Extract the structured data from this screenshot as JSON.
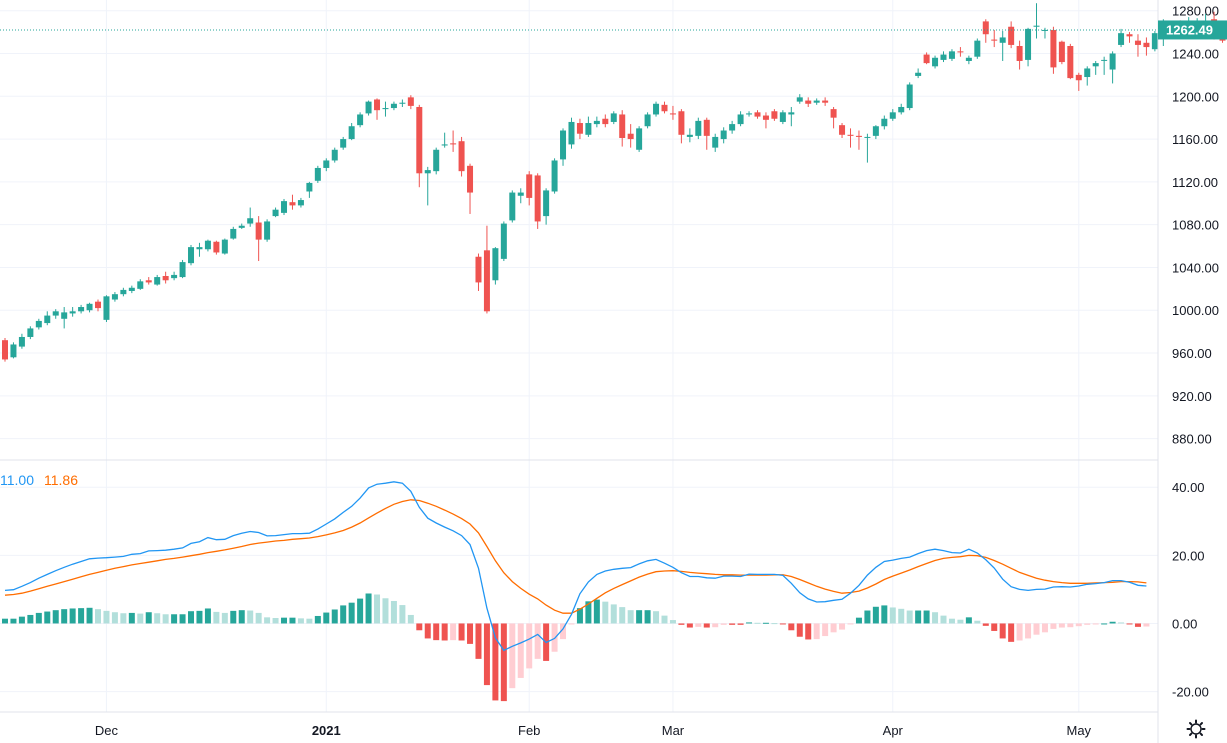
{
  "colors": {
    "up": "#26a69a",
    "down": "#ef5350",
    "hist_up_strong": "#26a69a",
    "hist_up_weak": "#b2dfdb",
    "hist_down_strong": "#ef5350",
    "hist_down_weak": "#ffcdd2",
    "macd": "#2196f3",
    "signal": "#ff6d00",
    "grid": "#f0f3fa",
    "axis_text": "#131722"
  },
  "last_price_label": "1262.49",
  "settings_icon": "gear-icon",
  "macd_legend": {
    "macd_value": "11.00",
    "signal_value": "11.86"
  },
  "chart_data": [
    {
      "type": "candlestick",
      "grid": true,
      "ylim": [
        860,
        1290
      ],
      "y_ticks": [
        "1280.00",
        "1240.00",
        "1200.00",
        "1160.00",
        "1120.00",
        "1080.00",
        "1040.00",
        "1000.00",
        "960.00",
        "920.00",
        "880.00"
      ],
      "y_tick_values": [
        1280,
        1240,
        1200,
        1160,
        1120,
        1080,
        1040,
        1000,
        960,
        920,
        880
      ],
      "x_labels": [
        {
          "label": "Dec",
          "index": 12,
          "bold": false
        },
        {
          "label": "2021",
          "index": 38,
          "bold": true
        },
        {
          "label": "Feb",
          "index": 62,
          "bold": false
        },
        {
          "label": "Mar",
          "index": 79,
          "bold": false
        },
        {
          "label": "Apr",
          "index": 105,
          "bold": false
        },
        {
          "label": "May",
          "index": 127,
          "bold": false
        }
      ],
      "candles": [
        [
          972,
          954,
          974,
          952
        ],
        [
          956,
          968,
          970,
          955
        ],
        [
          966,
          975,
          978,
          964
        ],
        [
          975,
          983,
          985,
          973
        ],
        [
          984,
          990,
          992,
          982
        ],
        [
          988,
          995,
          999,
          986
        ],
        [
          995,
          999,
          1001,
          992
        ],
        [
          992,
          998,
          1003,
          983
        ],
        [
          997,
          999,
          1003,
          994
        ],
        [
          999,
          1003,
          1005,
          997
        ],
        [
          1000,
          1006,
          1007,
          998
        ],
        [
          1008,
          1002,
          1010,
          999
        ],
        [
          991,
          1013,
          1014,
          989
        ],
        [
          1010,
          1015,
          1017,
          1008
        ],
        [
          1015,
          1019,
          1021,
          1013
        ],
        [
          1018,
          1021,
          1023,
          1016
        ],
        [
          1020,
          1027,
          1029,
          1019
        ],
        [
          1028,
          1026,
          1031,
          1024
        ],
        [
          1024,
          1031,
          1033,
          1023
        ],
        [
          1032,
          1028,
          1036,
          1025
        ],
        [
          1030,
          1033,
          1036,
          1028
        ],
        [
          1031,
          1045,
          1047,
          1030
        ],
        [
          1044,
          1059,
          1061,
          1042
        ],
        [
          1057,
          1059,
          1063,
          1050
        ],
        [
          1057,
          1065,
          1066,
          1055
        ],
        [
          1064,
          1054,
          1065,
          1052
        ],
        [
          1053,
          1066,
          1067,
          1052
        ],
        [
          1067,
          1076,
          1078,
          1066
        ],
        [
          1077,
          1079,
          1081,
          1076
        ],
        [
          1081,
          1086,
          1096,
          1078
        ],
        [
          1082,
          1066,
          1088,
          1046
        ],
        [
          1066,
          1083,
          1085,
          1064
        ],
        [
          1088,
          1094,
          1096,
          1087
        ],
        [
          1091,
          1102,
          1104,
          1089
        ],
        [
          1101,
          1098,
          1108,
          1094
        ],
        [
          1098,
          1103,
          1105,
          1096
        ],
        [
          1111,
          1119,
          1120,
          1105
        ],
        [
          1121,
          1133,
          1135,
          1119
        ],
        [
          1133,
          1140,
          1142,
          1130
        ],
        [
          1140,
          1150,
          1152,
          1138
        ],
        [
          1152,
          1160,
          1162,
          1150
        ],
        [
          1160,
          1172,
          1175,
          1159
        ],
        [
          1173,
          1183,
          1185,
          1171
        ],
        [
          1184,
          1195,
          1196,
          1182
        ],
        [
          1197,
          1187,
          1198,
          1178
        ],
        [
          1188,
          1189,
          1195,
          1181
        ],
        [
          1189,
          1193,
          1195,
          1187
        ],
        [
          1193,
          1194,
          1197,
          1190
        ],
        [
          1199,
          1191,
          1201,
          1188
        ],
        [
          1190,
          1128,
          1192,
          1115
        ],
        [
          1128,
          1131,
          1134,
          1098
        ],
        [
          1130,
          1150,
          1152,
          1127
        ],
        [
          1154,
          1155,
          1166,
          1152
        ],
        [
          1156,
          1155,
          1168,
          1148
        ],
        [
          1158,
          1130,
          1162,
          1125
        ],
        [
          1135,
          1110,
          1137,
          1090
        ],
        [
          1050,
          1026,
          1053,
          1018
        ],
        [
          1056,
          999,
          1079,
          997
        ],
        [
          1028,
          1058,
          1059,
          1024
        ],
        [
          1048,
          1081,
          1083,
          1046
        ],
        [
          1084,
          1110,
          1112,
          1082
        ],
        [
          1107,
          1110,
          1114,
          1100
        ],
        [
          1127,
          1105,
          1130,
          1098
        ],
        [
          1126,
          1083,
          1128,
          1076
        ],
        [
          1088,
          1112,
          1114,
          1080
        ],
        [
          1111,
          1140,
          1142,
          1109
        ],
        [
          1141,
          1168,
          1170,
          1135
        ],
        [
          1155,
          1176,
          1180,
          1151
        ],
        [
          1175,
          1165,
          1179,
          1160
        ],
        [
          1164,
          1175,
          1181,
          1162
        ],
        [
          1174,
          1177,
          1181,
          1171
        ],
        [
          1179,
          1174,
          1183,
          1171
        ],
        [
          1176,
          1184,
          1186,
          1174
        ],
        [
          1183,
          1161,
          1187,
          1153
        ],
        [
          1165,
          1160,
          1174,
          1152
        ],
        [
          1150,
          1170,
          1172,
          1148
        ],
        [
          1172,
          1183,
          1185,
          1170
        ],
        [
          1183,
          1193,
          1195,
          1181
        ],
        [
          1192,
          1186,
          1195,
          1184
        ],
        [
          1184,
          1183,
          1191,
          1178
        ],
        [
          1186,
          1164,
          1188,
          1156
        ],
        [
          1162,
          1164,
          1170,
          1157
        ],
        [
          1163,
          1177,
          1180,
          1160
        ],
        [
          1178,
          1163,
          1180,
          1150
        ],
        [
          1152,
          1162,
          1165,
          1148
        ],
        [
          1160,
          1168,
          1171,
          1156
        ],
        [
          1168,
          1174,
          1177,
          1165
        ],
        [
          1174,
          1183,
          1186,
          1172
        ],
        [
          1183,
          1184,
          1186,
          1181
        ],
        [
          1185,
          1181,
          1187,
          1179
        ],
        [
          1182,
          1178,
          1185,
          1170
        ],
        [
          1186,
          1179,
          1188,
          1177
        ],
        [
          1176,
          1185,
          1187,
          1174
        ],
        [
          1183,
          1185,
          1190,
          1172
        ],
        [
          1195,
          1199,
          1202,
          1193
        ],
        [
          1196,
          1193,
          1199,
          1190
        ],
        [
          1194,
          1196,
          1198,
          1192
        ],
        [
          1196,
          1194,
          1199,
          1191
        ],
        [
          1188,
          1180,
          1190,
          1170
        ],
        [
          1173,
          1164,
          1175,
          1161
        ],
        [
          1164,
          1163,
          1170,
          1152
        ],
        [
          1163,
          1162,
          1168,
          1150
        ],
        [
          1162,
          1162,
          1165,
          1138
        ],
        [
          1163,
          1172,
          1173,
          1160
        ],
        [
          1172,
          1179,
          1182,
          1169
        ],
        [
          1179,
          1185,
          1188,
          1177
        ],
        [
          1185,
          1190,
          1193,
          1183
        ],
        [
          1189,
          1211,
          1213,
          1187
        ],
        [
          1219,
          1222,
          1226,
          1217
        ],
        [
          1239,
          1231,
          1241,
          1230
        ],
        [
          1228,
          1236,
          1238,
          1226
        ],
        [
          1234,
          1239,
          1242,
          1232
        ],
        [
          1235,
          1242,
          1244,
          1233
        ],
        [
          1242,
          1241,
          1246,
          1237
        ],
        [
          1233,
          1236,
          1238,
          1230
        ],
        [
          1237,
          1252,
          1254,
          1235
        ],
        [
          1270,
          1258,
          1272,
          1250
        ],
        [
          1253,
          1252,
          1262,
          1246
        ],
        [
          1250,
          1255,
          1261,
          1233
        ],
        [
          1265,
          1248,
          1270,
          1245
        ],
        [
          1247,
          1233,
          1252,
          1225
        ],
        [
          1234,
          1263,
          1264,
          1228
        ],
        [
          1265,
          1266,
          1287,
          1254
        ],
        [
          1262,
          1262,
          1264,
          1254
        ],
        [
          1262,
          1227,
          1265,
          1221
        ],
        [
          1251,
          1232,
          1252,
          1230
        ],
        [
          1247,
          1217,
          1249,
          1216
        ],
        [
          1220,
          1215,
          1222,
          1205
        ],
        [
          1218,
          1226,
          1228,
          1210
        ],
        [
          1228,
          1231,
          1233,
          1220
        ],
        [
          1234,
          1234,
          1237,
          1220
        ],
        [
          1225,
          1240,
          1242,
          1212
        ],
        [
          1248,
          1259,
          1263,
          1246
        ],
        [
          1258,
          1256,
          1260,
          1250
        ],
        [
          1252,
          1248,
          1258,
          1237
        ],
        [
          1250,
          1246,
          1255,
          1238
        ],
        [
          1244,
          1259,
          1261,
          1242
        ],
        [
          1262,
          1264,
          1272,
          1247
        ],
        [
          1256,
          1263,
          1269,
          1254
        ],
        [
          1270,
          1261,
          1271,
          1256
        ],
        [
          1262,
          1262,
          1274,
          1257
        ],
        [
          1261,
          1262,
          1273,
          1257
        ],
        [
          1265,
          1267,
          1277,
          1261
        ],
        [
          1272,
          1259,
          1279,
          1253
        ],
        [
          1262,
          1252,
          1264,
          1250
        ],
        [
          1253,
          1262,
          1264,
          1252
        ]
      ]
    },
    {
      "type": "macd",
      "grid": true,
      "ylim": [
        -26,
        48
      ],
      "y_ticks": [
        "40.00",
        "20.00",
        "0.00",
        "-20.00"
      ],
      "y_tick_values": [
        40,
        20,
        0,
        -20
      ],
      "macd": [
        9.7,
        9.9,
        10.9,
        12.0,
        13.3,
        14.4,
        15.5,
        16.5,
        17.4,
        18.2,
        19.0,
        19.2,
        19.3,
        19.5,
        19.7,
        20.3,
        20.5,
        21.3,
        21.4,
        21.5,
        21.8,
        22.2,
        23.5,
        24.0,
        25.2,
        24.6,
        24.7,
        25.8,
        26.5,
        27.0,
        26.7,
        25.7,
        25.8,
        26.1,
        26.4,
        26.4,
        26.5,
        27.7,
        29.2,
        30.7,
        32.6,
        34.4,
        36.8,
        39.8,
        40.9,
        41.2,
        41.6,
        41.2,
        38.8,
        34.1,
        30.9,
        29.5,
        28.3,
        27.2,
        25.8,
        23.2,
        16.2,
        4.5,
        -4.2,
        -7.9,
        -6.7,
        -5.7,
        -4.6,
        -3.2,
        -5.6,
        -4.4,
        -1.6,
        2.7,
        8.7,
        12.2,
        14.4,
        15.4,
        15.9,
        16.2,
        16.4,
        17.5,
        18.4,
        18.8,
        17.7,
        16.5,
        14.9,
        13.8,
        13.8,
        13.4,
        13.3,
        13.9,
        13.9,
        13.8,
        14.5,
        14.4,
        14.4,
        14.4,
        14.1,
        11.8,
        9.0,
        7.2,
        6.3,
        6.4,
        6.8,
        7.1,
        8.9,
        11.2,
        14.2,
        16.5,
        18.2,
        18.6,
        19.1,
        19.5,
        20.5,
        21.4,
        21.8,
        21.4,
        20.8,
        20.7,
        21.8,
        20.7,
        18.7,
        16.3,
        13.0,
        10.8,
        10.0,
        9.7,
        10.0,
        10.1,
        10.7,
        10.8,
        10.7,
        11.0,
        11.5,
        11.7,
        12.0,
        12.6,
        12.6,
        12.1,
        11.2,
        11.0
      ],
      "signal": [
        8.3,
        8.5,
        8.9,
        9.5,
        10.2,
        10.9,
        11.6,
        12.3,
        13.0,
        13.7,
        14.4,
        15.0,
        15.6,
        16.2,
        16.7,
        17.2,
        17.6,
        18.0,
        18.4,
        18.8,
        19.1,
        19.5,
        19.9,
        20.3,
        20.8,
        21.2,
        21.6,
        22.1,
        22.6,
        23.2,
        23.6,
        23.9,
        24.2,
        24.4,
        24.7,
        24.9,
        25.1,
        25.5,
        26.0,
        26.6,
        27.3,
        28.3,
        29.5,
        31.0,
        32.4,
        33.8,
        35.0,
        35.8,
        36.3,
        36.1,
        35.3,
        34.4,
        33.3,
        32.1,
        30.8,
        29.2,
        26.6,
        22.6,
        18.4,
        14.9,
        12.3,
        10.3,
        8.6,
        7.2,
        5.4,
        3.9,
        3.0,
        3.0,
        4.2,
        5.7,
        7.4,
        9.0,
        10.3,
        11.4,
        12.5,
        13.6,
        14.5,
        15.2,
        15.4,
        15.5,
        15.3,
        15.0,
        14.8,
        14.6,
        14.4,
        14.3,
        14.3,
        14.2,
        14.2,
        14.2,
        14.2,
        14.3,
        14.3,
        13.8,
        12.9,
        11.9,
        10.9,
        10.1,
        9.4,
        8.9,
        9.1,
        9.5,
        10.4,
        11.6,
        12.9,
        13.9,
        14.8,
        15.7,
        16.7,
        17.6,
        18.5,
        19.1,
        19.4,
        19.6,
        20.0,
        19.9,
        19.4,
        18.5,
        17.4,
        16.2,
        15.0,
        14.1,
        13.3,
        12.7,
        12.3,
        12.0,
        11.8,
        11.8,
        11.8,
        11.9,
        12.0,
        12.1,
        12.3,
        12.3,
        12.2,
        11.9
      ],
      "histogram": [
        1.4,
        1.4,
        2.0,
        2.5,
        3.1,
        3.5,
        3.9,
        4.2,
        4.4,
        4.5,
        4.6,
        4.2,
        3.7,
        3.3,
        3.0,
        3.1,
        2.9,
        3.3,
        3.0,
        2.7,
        2.7,
        2.7,
        3.6,
        3.7,
        4.4,
        3.4,
        3.1,
        3.7,
        3.9,
        3.8,
        3.1,
        1.8,
        1.6,
        1.7,
        1.7,
        1.5,
        1.4,
        2.2,
        3.2,
        4.1,
        5.3,
        6.1,
        7.3,
        8.8,
        8.5,
        7.4,
        6.6,
        5.4,
        2.5,
        -2.0,
        -4.4,
        -4.9,
        -5.0,
        -4.9,
        -5.0,
        -6.0,
        -10.4,
        -18.1,
        -22.6,
        -22.8,
        -19.0,
        -16.0,
        -13.2,
        -10.4,
        -11.0,
        -8.3,
        -4.6,
        -0.3,
        4.5,
        6.5,
        7.0,
        6.4,
        5.6,
        4.8,
        3.9,
        3.9,
        3.9,
        3.6,
        2.3,
        1.0,
        -0.4,
        -1.2,
        -1.0,
        -1.2,
        -1.1,
        -0.4,
        -0.4,
        -0.4,
        0.3,
        0.2,
        0.2,
        0.1,
        -0.2,
        -2.0,
        -3.9,
        -4.7,
        -4.6,
        -3.7,
        -2.6,
        -1.8,
        -0.2,
        1.7,
        3.8,
        4.9,
        5.3,
        4.7,
        4.3,
        3.8,
        3.8,
        3.8,
        3.3,
        2.3,
        1.4,
        1.1,
        1.8,
        0.8,
        -0.7,
        -2.2,
        -4.4,
        -5.4,
        -5.0,
        -4.4,
        -3.3,
        -2.6,
        -1.6,
        -1.2,
        -1.1,
        -0.8,
        -0.4,
        -0.3,
        0.0,
        0.5,
        0.3,
        -0.1,
        -1.0,
        -0.9
      ]
    }
  ]
}
